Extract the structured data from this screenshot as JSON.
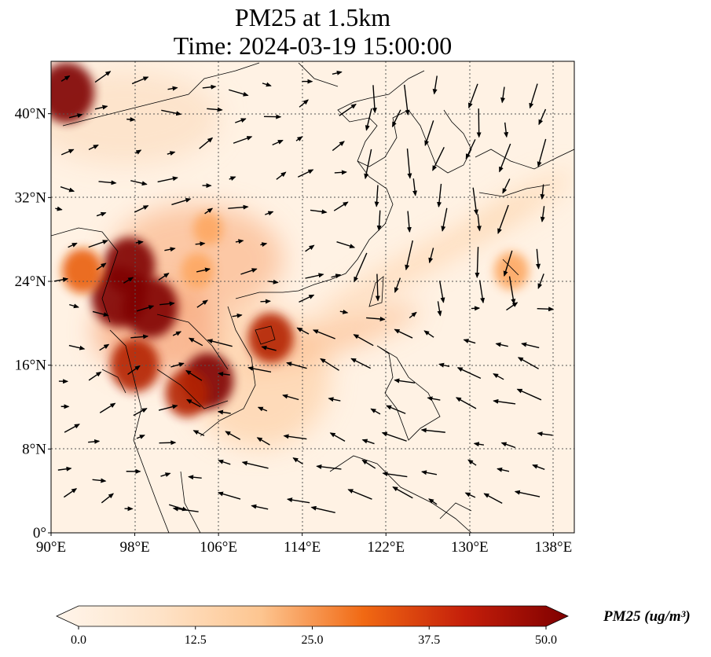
{
  "title": "PM25 at 1.5km",
  "subtitle": "Time: 2024-03-19 15:00:00",
  "map": {
    "extent": {
      "lon_min": 90,
      "lon_max": 140,
      "lat_min": 0,
      "lat_max": 45
    },
    "lon_ticks": [
      {
        "value": 90,
        "label": "90°E"
      },
      {
        "value": 98,
        "label": "98°E"
      },
      {
        "value": 106,
        "label": "106°E"
      },
      {
        "value": 114,
        "label": "114°E"
      },
      {
        "value": 122,
        "label": "122°E"
      },
      {
        "value": 130,
        "label": "130°E"
      },
      {
        "value": 138,
        "label": "138°E"
      }
    ],
    "lat_ticks": [
      {
        "value": 0,
        "label": "0°"
      },
      {
        "value": 8,
        "label": "8°N"
      },
      {
        "value": 16,
        "label": "16°N"
      },
      {
        "value": 24,
        "label": "24°N"
      },
      {
        "value": 32,
        "label": "32°N"
      },
      {
        "value": 40,
        "label": "40°N"
      }
    ],
    "gridlines": true,
    "field_colors": [
      "#fff5eb",
      "#fdd9b4",
      "#fda762",
      "#e95e0d",
      "#b32303",
      "#7f0000"
    ],
    "hotspots": [
      {
        "lon": 91.5,
        "lat": 42,
        "value": 50
      },
      {
        "lon": 96.5,
        "lat": 22.5,
        "value": 50
      },
      {
        "lon": 97.5,
        "lat": 25.5,
        "value": 45
      },
      {
        "lon": 99.5,
        "lat": 21.5,
        "value": 50
      },
      {
        "lon": 93,
        "lat": 25,
        "value": 32
      },
      {
        "lon": 98,
        "lat": 16,
        "value": 42
      },
      {
        "lon": 105,
        "lat": 14.5,
        "value": 45
      },
      {
        "lon": 103,
        "lat": 13.3,
        "value": 35
      },
      {
        "lon": 111,
        "lat": 18.6,
        "value": 38
      },
      {
        "lon": 104,
        "lat": 25,
        "value": 22
      },
      {
        "lon": 105,
        "lat": 29,
        "value": 18
      },
      {
        "lon": 134,
        "lat": 25,
        "value": 24
      }
    ]
  },
  "colorbar": {
    "label": "PM25 (ug/m³)",
    "min": 0,
    "max": 50,
    "ticks": [
      "0.0",
      "12.5",
      "25.0",
      "37.5",
      "50.0"
    ],
    "extend": "both",
    "colormap": "OrRd"
  }
}
